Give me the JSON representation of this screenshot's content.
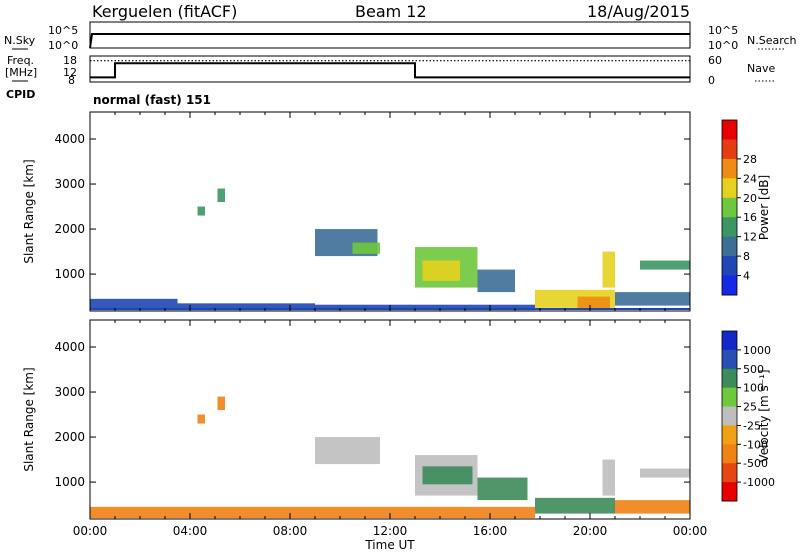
{
  "header": {
    "station": "Kerguelen (fitACF)",
    "beam": "Beam 12",
    "date": "18/Aug/2015"
  },
  "status_panel": {
    "nsky_label": "N.Sky",
    "nsearch_label": "N.Search",
    "freq_label_1": "Freq.",
    "freq_label_2": "[MHz]",
    "nave_label": "Nave",
    "cpid_label": "CPID",
    "cpid_value": "normal (fast) 151",
    "nsky_ticks": [
      "10^5",
      "10^0"
    ],
    "nsearch_ticks": [
      "10^5",
      "10^0"
    ],
    "freq_ticks": [
      "18",
      "12",
      "8"
    ],
    "nave_ticks": [
      "60",
      "0"
    ],
    "freq_trace": [
      {
        "x": 0.0,
        "y": 0.18
      },
      {
        "x": 1.0,
        "y": 0.18
      },
      {
        "x": 1.0,
        "y": 0.72
      },
      {
        "x": 13.0,
        "y": 0.72
      },
      {
        "x": 13.0,
        "y": 0.18
      },
      {
        "x": 24.0,
        "y": 0.18
      }
    ],
    "nave_level": 0.82
  },
  "chart_data": [
    {
      "type": "heatmap",
      "name": "power-panel",
      "ylabel": "Slant Range [km]",
      "xlabel": "",
      "xlim": [
        0,
        24
      ],
      "ylim": [
        180,
        4600
      ],
      "yticks": [
        "1000",
        "2000",
        "3000",
        "4000"
      ],
      "yticks_values": [
        1000,
        2000,
        3000,
        4000
      ],
      "colorbar": {
        "label": "Power [dB]",
        "ticks": [
          "4",
          "8",
          "12",
          "16",
          "20",
          "24",
          "28"
        ],
        "colors": [
          "#1428e6",
          "#1e46b4",
          "#3c6e96",
          "#3c9664",
          "#6ec83c",
          "#e6d21e",
          "#f08c14",
          "#e63c14",
          "#e60000"
        ]
      },
      "patches": [
        {
          "x0": 5.1,
          "x1": 5.4,
          "y0": 2600,
          "y1": 2900,
          "v": 12
        },
        {
          "x0": 4.3,
          "x1": 4.6,
          "y0": 2300,
          "y1": 2500,
          "v": 14
        },
        {
          "x0": 9.0,
          "x1": 11.5,
          "y0": 1400,
          "y1": 2000,
          "v": 8
        },
        {
          "x0": 10.5,
          "x1": 11.6,
          "y0": 1450,
          "y1": 1700,
          "v": 16
        },
        {
          "x0": 13.0,
          "x1": 15.5,
          "y0": 700,
          "y1": 1600,
          "v": 16
        },
        {
          "x0": 13.3,
          "x1": 14.8,
          "y0": 850,
          "y1": 1300,
          "v": 22
        },
        {
          "x0": 15.5,
          "x1": 17.0,
          "y0": 600,
          "y1": 1100,
          "v": 10
        },
        {
          "x0": 17.8,
          "x1": 21.0,
          "y0": 250,
          "y1": 650,
          "v": 20
        },
        {
          "x0": 19.5,
          "x1": 20.8,
          "y0": 220,
          "y1": 500,
          "v": 26
        },
        {
          "x0": 20.5,
          "x1": 21.0,
          "y0": 700,
          "y1": 1500,
          "v": 20
        },
        {
          "x0": 21.0,
          "x1": 24.0,
          "y0": 300,
          "y1": 600,
          "v": 10
        },
        {
          "x0": 22.0,
          "x1": 24.0,
          "y0": 1100,
          "y1": 1300,
          "v": 12
        },
        {
          "x0": 0.0,
          "x1": 3.5,
          "y0": 200,
          "y1": 450,
          "v": 6
        },
        {
          "x0": 3.5,
          "x1": 9.0,
          "y0": 200,
          "y1": 350,
          "v": 6
        },
        {
          "x0": 9.0,
          "x1": 17.8,
          "y0": 200,
          "y1": 320,
          "v": 5
        }
      ]
    },
    {
      "type": "heatmap",
      "name": "velocity-panel",
      "ylabel": "Slant Range [km]",
      "xlabel": "Time UT",
      "xlim": [
        0,
        24
      ],
      "ylim": [
        180,
        4600
      ],
      "yticks": [
        "1000",
        "2000",
        "3000",
        "4000"
      ],
      "yticks_values": [
        1000,
        2000,
        3000,
        4000
      ],
      "xticks": [
        "00:00",
        "04:00",
        "08:00",
        "12:00",
        "16:00",
        "20:00",
        "00:00"
      ],
      "colorbar": {
        "label": "Velocity [m s⁻¹]",
        "ticks": [
          "1000",
          "500",
          "100",
          "25",
          "-25",
          "-100",
          "-500",
          "-1000"
        ],
        "colors": [
          "#1428c8",
          "#2850b4",
          "#3c8c5a",
          "#6ec83c",
          "#bebebe",
          "#f0a014",
          "#f08214",
          "#e64614",
          "#e60000"
        ]
      },
      "patches": [
        {
          "x0": 5.1,
          "x1": 5.4,
          "y0": 2600,
          "y1": 2900,
          "v": -500
        },
        {
          "x0": 4.3,
          "x1": 4.6,
          "y0": 2300,
          "y1": 2500,
          "v": -300
        },
        {
          "x0": 9.0,
          "x1": 11.6,
          "y0": 1400,
          "y1": 2000,
          "v": 0
        },
        {
          "x0": 13.0,
          "x1": 15.5,
          "y0": 700,
          "y1": 1600,
          "v": 0
        },
        {
          "x0": 13.3,
          "x1": 15.3,
          "y0": 950,
          "y1": 1350,
          "v": 120
        },
        {
          "x0": 15.5,
          "x1": 17.5,
          "y0": 600,
          "y1": 1100,
          "v": 110
        },
        {
          "x0": 17.8,
          "x1": 21.0,
          "y0": 300,
          "y1": 650,
          "v": 150
        },
        {
          "x0": 20.5,
          "x1": 21.0,
          "y0": 700,
          "y1": 1500,
          "v": 0
        },
        {
          "x0": 21.0,
          "x1": 24.0,
          "y0": 300,
          "y1": 600,
          "v": -150
        },
        {
          "x0": 22.0,
          "x1": 24.0,
          "y0": 1100,
          "y1": 1300,
          "v": 0
        },
        {
          "x0": 0.0,
          "x1": 17.8,
          "y0": 200,
          "y1": 450,
          "v": -200
        }
      ]
    }
  ]
}
